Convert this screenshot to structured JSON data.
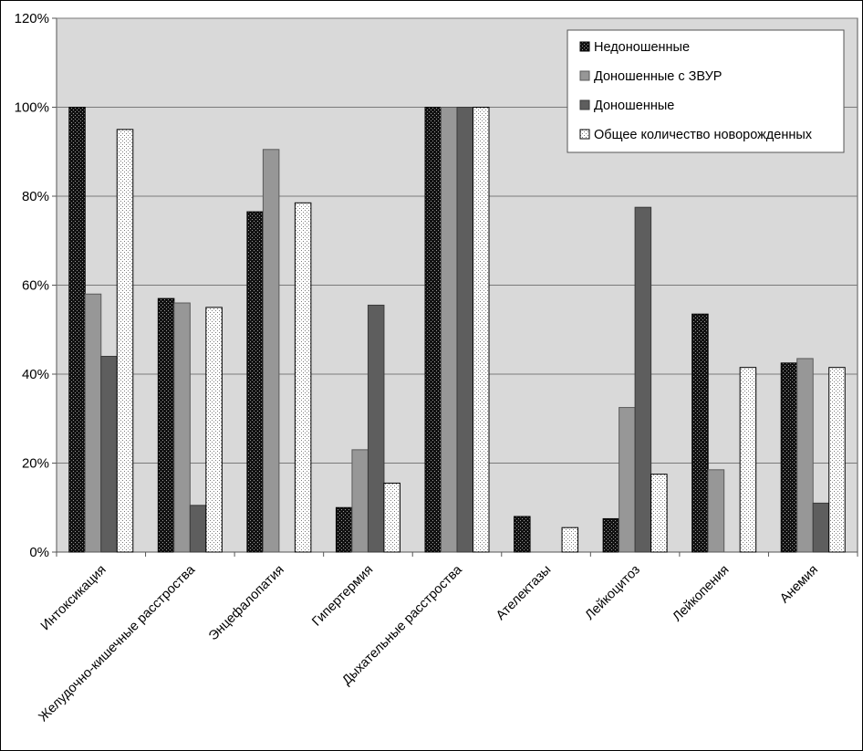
{
  "chart_data": {
    "type": "bar",
    "categories": [
      "Интоксикация",
      "Желудочно-кишечные расстроства",
      "Энцефалопатия",
      "Гипертермия",
      "Дыхательные расстроства",
      "Ателектазы",
      "Лейкоцитоз",
      "Лейкопения",
      "Анемия"
    ],
    "series": [
      {
        "name": "Недоношенные",
        "values": [
          100,
          57,
          76.5,
          10,
          100,
          8,
          7.5,
          53.5,
          42.5
        ]
      },
      {
        "name": "Доношенные с ЗВУР",
        "values": [
          58,
          56,
          90.5,
          23,
          100,
          0,
          32.5,
          18.5,
          43.5
        ]
      },
      {
        "name": "Доношенные",
        "values": [
          44,
          10.5,
          0,
          55.5,
          100,
          0,
          77.5,
          0,
          11
        ]
      },
      {
        "name": "Общее количество новорожденных",
        "values": [
          95,
          55,
          78.5,
          15.5,
          100,
          5.5,
          17.5,
          41.5,
          41.5
        ]
      }
    ],
    "yticks": [
      "0%",
      "20%",
      "40%",
      "60%",
      "80%",
      "100%",
      "120%"
    ],
    "ylim": [
      0,
      120
    ],
    "grid": true,
    "legend_position": "top-right"
  }
}
